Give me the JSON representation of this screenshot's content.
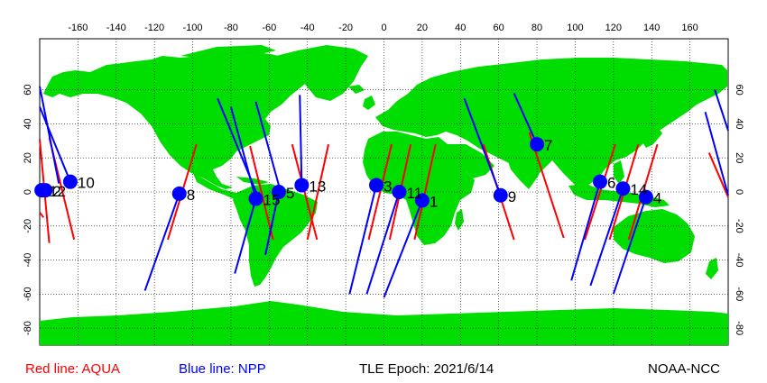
{
  "legend": {
    "aqua_text": "Red line: AQUA",
    "npp_text": "Blue line: NPP",
    "aqua_color": "#ff0000",
    "npp_color": "#0000ff"
  },
  "epoch_text": "TLE Epoch: 2021/6/14",
  "source_text": "NOAA-NCC",
  "colors": {
    "land": "#00dd00",
    "ocean": "#ffffff",
    "marker": "#0000ff"
  },
  "axes": {
    "lon_ticks": [
      "-160",
      "-140",
      "-120",
      "-100",
      "-80",
      "-60",
      "-40",
      "-20",
      "0",
      "20",
      "40",
      "60",
      "80",
      "100",
      "120",
      "140",
      "160"
    ],
    "lat_ticks": [
      "60",
      "40",
      "20",
      "0",
      "-20",
      "-40",
      "-60",
      "-80"
    ],
    "lon_range": [
      -180,
      180
    ],
    "lat_range": [
      -90,
      90
    ],
    "grid": "dotted"
  },
  "satellite_points": [
    {
      "label": "1",
      "lon": 20,
      "lat": -5
    },
    {
      "label": "2",
      "lon": -177,
      "lat": 1
    },
    {
      "label": "3",
      "lon": -4,
      "lat": 4
    },
    {
      "label": "4",
      "lon": 137,
      "lat": -3
    },
    {
      "label": "5",
      "lon": -55,
      "lat": 0
    },
    {
      "label": "6",
      "lon": 113,
      "lat": 6
    },
    {
      "label": "7",
      "lon": 80,
      "lat": 28
    },
    {
      "label": "8",
      "lon": -107,
      "lat": -1
    },
    {
      "label": "9",
      "lon": 61,
      "lat": -2
    },
    {
      "label": "10",
      "lon": -164,
      "lat": 6
    },
    {
      "label": "11",
      "lon": 8,
      "lat": 0
    },
    {
      "label": "12",
      "lon": -179,
      "lat": 1
    },
    {
      "label": "13",
      "lon": -43,
      "lat": 4
    },
    {
      "label": "14",
      "lon": 125,
      "lat": 2
    },
    {
      "label": "15",
      "lon": -67,
      "lat": -4
    }
  ],
  "tracks": [
    {
      "sat": "AQUA",
      "from": [
        -181,
        31
      ],
      "to": [
        -175,
        -30
      ]
    },
    {
      "sat": "AQUA",
      "from": [
        -180,
        -12
      ],
      "to": [
        -178,
        -15
      ]
    },
    {
      "sat": "AQUA",
      "from": [
        -175,
        32
      ],
      "to": [
        -162,
        -28
      ]
    },
    {
      "sat": "AQUA",
      "from": [
        -98,
        28
      ],
      "to": [
        -113,
        -28
      ]
    },
    {
      "sat": "AQUA",
      "from": [
        -70,
        27
      ],
      "to": [
        -58,
        -28
      ]
    },
    {
      "sat": "AQUA",
      "from": [
        -48,
        28
      ],
      "to": [
        -35,
        -28
      ]
    },
    {
      "sat": "AQUA",
      "from": [
        -29,
        28
      ],
      "to": [
        -40,
        -28
      ]
    },
    {
      "sat": "AQUA",
      "from": [
        4,
        28
      ],
      "to": [
        -8,
        -28
      ]
    },
    {
      "sat": "AQUA",
      "from": [
        14,
        28
      ],
      "to": [
        3,
        -28
      ]
    },
    {
      "sat": "AQUA",
      "from": [
        27,
        28
      ],
      "to": [
        16,
        -28
      ]
    },
    {
      "sat": "AQUA",
      "from": [
        52,
        28
      ],
      "to": [
        68,
        -28
      ]
    },
    {
      "sat": "AQUA",
      "from": [
        76,
        35
      ],
      "to": [
        94,
        -27
      ]
    },
    {
      "sat": "AQUA",
      "from": [
        121,
        28
      ],
      "to": [
        105,
        -28
      ]
    },
    {
      "sat": "AQUA",
      "from": [
        133,
        28
      ],
      "to": [
        118,
        -28
      ]
    },
    {
      "sat": "AQUA",
      "from": [
        143,
        28
      ],
      "to": [
        128,
        -28
      ]
    },
    {
      "sat": "AQUA",
      "from": [
        170,
        23
      ],
      "to": [
        181,
        -3
      ]
    },
    {
      "sat": "NPP",
      "from": [
        -181,
        62
      ],
      "to": [
        -170,
        5
      ]
    },
    {
      "sat": "NPP",
      "from": [
        -164,
        6
      ],
      "to": [
        -181,
        50
      ]
    },
    {
      "sat": "NPP",
      "from": [
        -107,
        -1
      ],
      "to": [
        -125,
        -58
      ]
    },
    {
      "sat": "NPP",
      "from": [
        -87,
        55
      ],
      "to": [
        -65,
        -5
      ]
    },
    {
      "sat": "NPP",
      "from": [
        -80,
        50
      ],
      "to": [
        -67,
        -4
      ]
    },
    {
      "sat": "NPP",
      "from": [
        -67,
        -4
      ],
      "to": [
        -78,
        -48
      ]
    },
    {
      "sat": "NPP",
      "from": [
        -67,
        53
      ],
      "to": [
        -54,
        0
      ]
    },
    {
      "sat": "NPP",
      "from": [
        -55,
        0
      ],
      "to": [
        -62,
        -37
      ]
    },
    {
      "sat": "NPP",
      "from": [
        -44,
        57
      ],
      "to": [
        -43,
        4
      ]
    },
    {
      "sat": "NPP",
      "from": [
        -4,
        4
      ],
      "to": [
        -18,
        -60
      ]
    },
    {
      "sat": "NPP",
      "from": [
        8,
        0
      ],
      "to": [
        -9,
        -60
      ]
    },
    {
      "sat": "NPP",
      "from": [
        20,
        -5
      ],
      "to": [
        0,
        -62
      ]
    },
    {
      "sat": "NPP",
      "from": [
        61,
        -2
      ],
      "to": [
        42,
        55
      ]
    },
    {
      "sat": "NPP",
      "from": [
        80,
        28
      ],
      "to": [
        68,
        58
      ]
    },
    {
      "sat": "NPP",
      "from": [
        113,
        6
      ],
      "to": [
        98,
        -52
      ]
    },
    {
      "sat": "NPP",
      "from": [
        125,
        2
      ],
      "to": [
        108,
        -55
      ]
    },
    {
      "sat": "NPP",
      "from": [
        137,
        -3
      ],
      "to": [
        120,
        -60
      ]
    },
    {
      "sat": "NPP",
      "from": [
        168,
        47
      ],
      "to": [
        180,
        -2
      ]
    },
    {
      "sat": "NPP",
      "from": [
        173,
        60
      ],
      "to": [
        181,
        36
      ]
    }
  ]
}
